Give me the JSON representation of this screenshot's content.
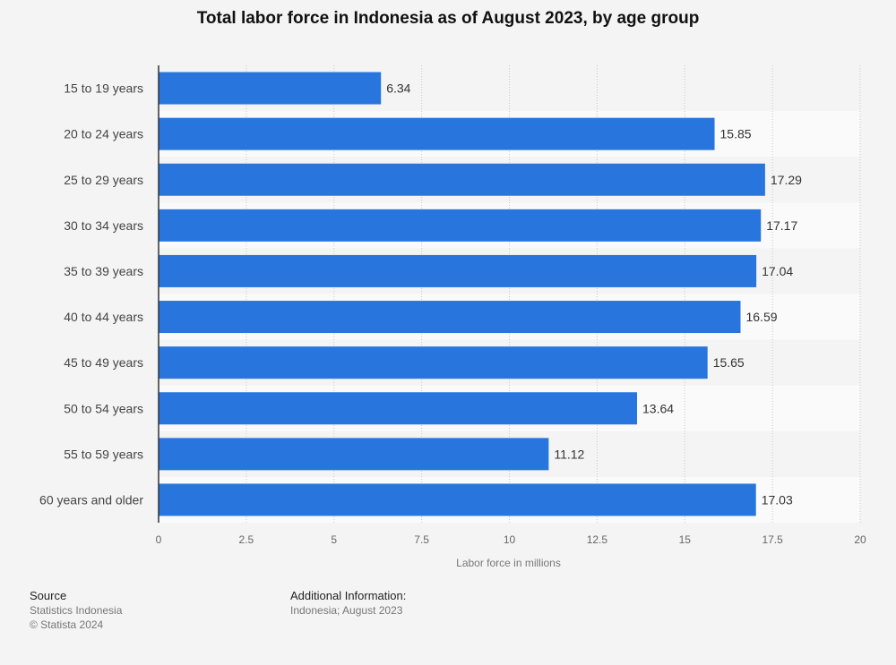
{
  "chart_data": {
    "type": "bar",
    "orientation": "horizontal",
    "title": "Total labor force in Indonesia as of August 2023, by age group",
    "xlabel": "Labor force in millions",
    "ylabel": "",
    "xlim": [
      0,
      20
    ],
    "xticks": [
      "0",
      "2.5",
      "5",
      "7.5",
      "10",
      "12.5",
      "15",
      "17.5",
      "20"
    ],
    "categories": [
      "15 to 19 years",
      "20 to 24 years",
      "25 to 29 years",
      "30 to 34 years",
      "35 to 39 years",
      "40 to 44 years",
      "45 to 49 years",
      "50 to 54 years",
      "55 to 59 years",
      "60 years and older"
    ],
    "values": [
      6.34,
      15.85,
      17.29,
      17.17,
      17.04,
      16.59,
      15.65,
      13.64,
      11.12,
      17.03
    ],
    "value_labels": [
      "6.34",
      "15.85",
      "17.29",
      "17.17",
      "17.04",
      "16.59",
      "15.65",
      "13.64",
      "11.12",
      "17.03"
    ],
    "bar_color": "#2876dd",
    "grid": true
  },
  "footer": {
    "source_heading": "Source",
    "source_name": "Statistics Indonesia",
    "copyright": "© Statista 2024",
    "info_heading": "Additional Information:",
    "info_text": "Indonesia; August 2023"
  }
}
